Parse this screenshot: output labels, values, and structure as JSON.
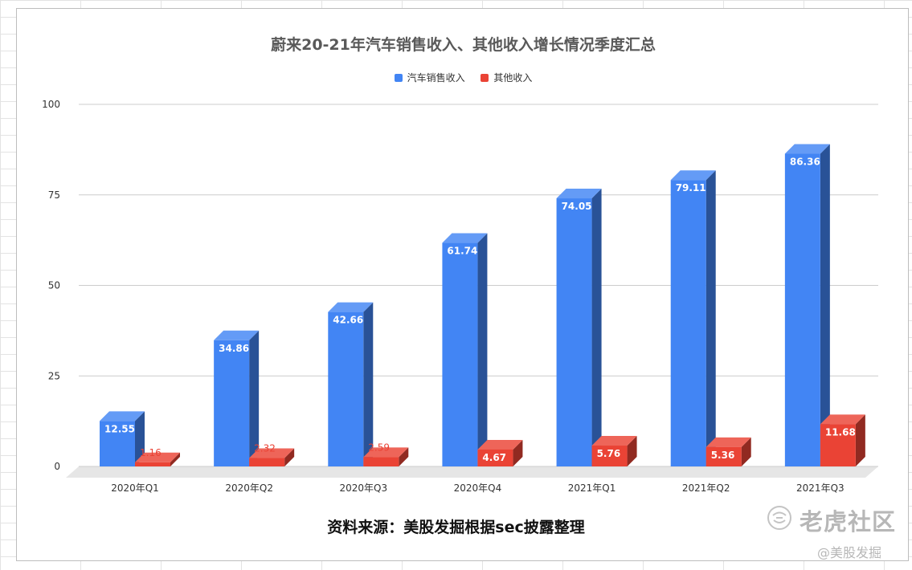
{
  "chart_data": {
    "type": "bar",
    "title": "蔚来20-21年汽车销售收入、其他收入增长情况季度汇总",
    "categories": [
      "2020年Q1",
      "2020年Q2",
      "2020年Q3",
      "2020年Q4",
      "2021年Q1",
      "2021年Q2",
      "2021年Q3"
    ],
    "series": [
      {
        "name": "汽车销售收入",
        "values": [
          12.55,
          34.86,
          42.66,
          61.74,
          74.05,
          79.11,
          86.36
        ],
        "color": "#4285f4"
      },
      {
        "name": "其他收入",
        "values": [
          1.16,
          2.32,
          2.59,
          4.67,
          5.76,
          5.36,
          11.68
        ],
        "color": "#ea4335"
      }
    ],
    "ylim": [
      0,
      100
    ],
    "yticks": [
      0,
      25,
      50,
      75,
      100
    ],
    "xlabel": "",
    "ylabel": "",
    "grid": true,
    "legend_position": "top",
    "style": "3d-bars"
  },
  "annotations": {
    "source_note": "资料来源：美股发掘根据sec披露整理"
  },
  "watermark": {
    "brand": "老虎社区",
    "handle": "@美股发掘",
    "icon": "tiger-logo-icon"
  }
}
